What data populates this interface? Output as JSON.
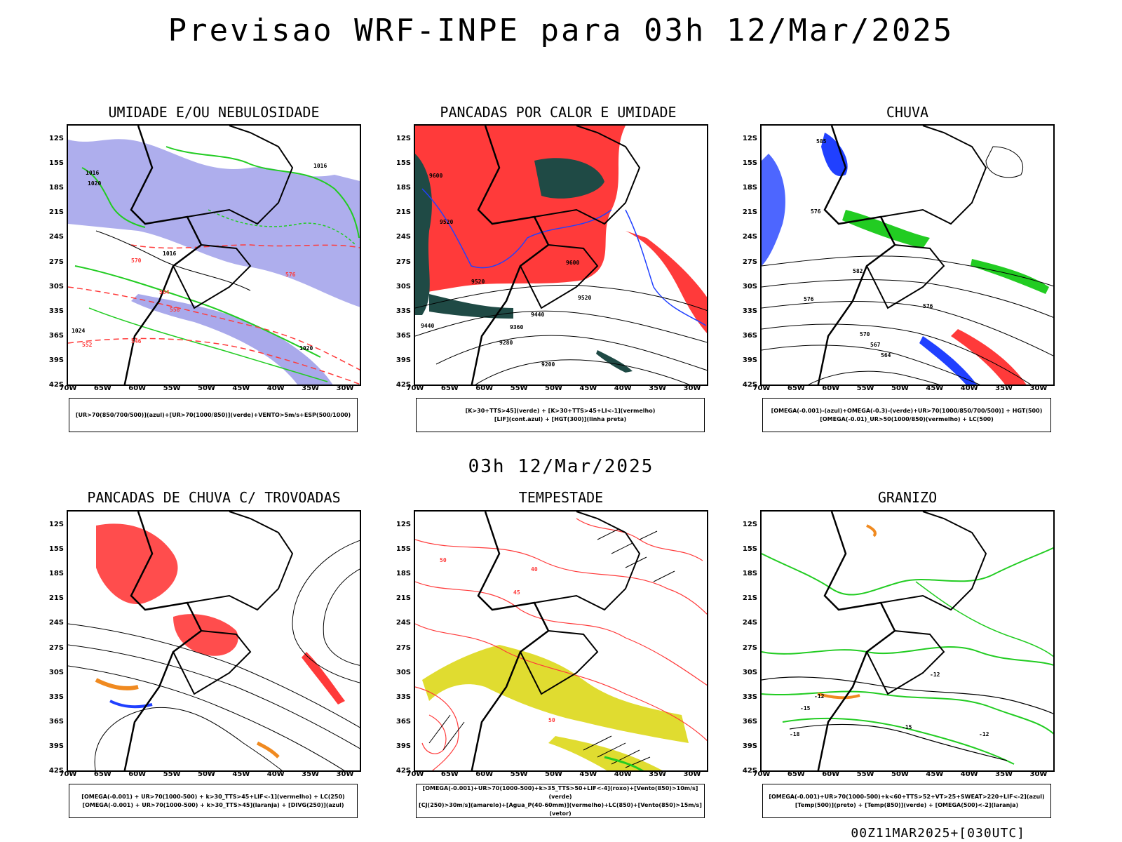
{
  "header": {
    "title": "Previsao WRF-INPE  para 03h 12/Mar/2025"
  },
  "mid_date": "03h 12/Mar/2025",
  "footer": {
    "timestamp": "00Z11MAR2025+[030UTC]"
  },
  "axes": {
    "lat": [
      "12S",
      "15S",
      "18S",
      "21S",
      "24S",
      "27S",
      "30S",
      "33S",
      "36S",
      "39S",
      "42S"
    ],
    "lon": [
      "70W",
      "65W",
      "60W",
      "55W",
      "50W",
      "45W",
      "40W",
      "35W",
      "30W"
    ]
  },
  "panels": [
    {
      "title": "UMIDADE E/OU NEBULOSIDADE",
      "legend": [
        "[UR>70(850/700/500)](azul)+[UR>70(1000/850)](verde)+VENTO>5m/s+ESP(500/1000)"
      ],
      "contour_labels": [
        "1016",
        "1020",
        "1016",
        "1024",
        "1020",
        "570",
        "564",
        "558",
        "552",
        "546",
        "576",
        "1016"
      ]
    },
    {
      "title": "PANCADAS POR CALOR E UMIDADE",
      "legend": [
        "[K>30+TTS>45](verde)  +  [K>30+TTS>45+LI<-1](vermelho)",
        "[LIF](cont.azul)  +  [HGT(300)](linha preta)"
      ],
      "contour_labels": [
        "9600",
        "9520",
        "9520",
        "9600",
        "9520",
        "9440",
        "9440",
        "9360",
        "9280",
        "9200"
      ]
    },
    {
      "title": "CHUVA",
      "legend": [
        "[OMEGA(-0.001)-(azul)+OMEGA(-0.3)-(verde)+UR>70(1000/850/700/500)]  +  HGT(500)",
        "[OMEGA(-0.01)_UR>50(1000/850)(vermelho)  +  LC(500)"
      ],
      "contour_labels": [
        "585",
        "576",
        "582",
        "576",
        "570",
        "567",
        "564",
        "576"
      ]
    },
    {
      "title": "PANCADAS DE CHUVA C/ TROVOADAS",
      "legend": [
        "[OMEGA(-0.001)  +  UR>70(1000-500)  +  k>30_TTS>45+LIF<-1](vermelho)  +  LC(250)",
        "[OMEGA(-0.001)  +  UR>70(1000-500)  +  k>30_TTS>45](laranja)  +  [DIVG(250)](azul)"
      ],
      "contour_labels": []
    },
    {
      "title": "TEMPESTADE",
      "legend": [
        "[OMEGA(-0.001)+UR>70(1000-500)+k>35_TTS>50+LIF<-4](roxo)+[Vento(850)>10m/s](verde)",
        "[CJ(250)>30m/s](amarelo)+[Agua_P(40-60mm)](vermelho)+LC(850)+[Vento(850)>15m/s](vetor)"
      ],
      "contour_labels": [
        "50",
        "40",
        "45",
        "50"
      ]
    },
    {
      "title": "GRANIZO",
      "legend": [
        "[OMEGA(-0.001)+UR>70(1000-500)+k<60+TTS>52+VT>25+SWEAT>220+LIF<-2](azul)",
        "[Temp(500)](preto)  +  [Temp(850)](verde)  +  [OMEGA(500)<-2](laranja)"
      ],
      "contour_labels": [
        "-15",
        "-12",
        "-18",
        "-15",
        "-12",
        "-12"
      ]
    }
  ],
  "colors": {
    "green": "#22cc22",
    "blue": "#2040ff",
    "red": "#ff3a3a",
    "darkgreen": "#1f4a45",
    "purple": "#9a9ae8",
    "yellow": "#e0dc30",
    "orange": "#f08a20",
    "black": "#000000"
  }
}
